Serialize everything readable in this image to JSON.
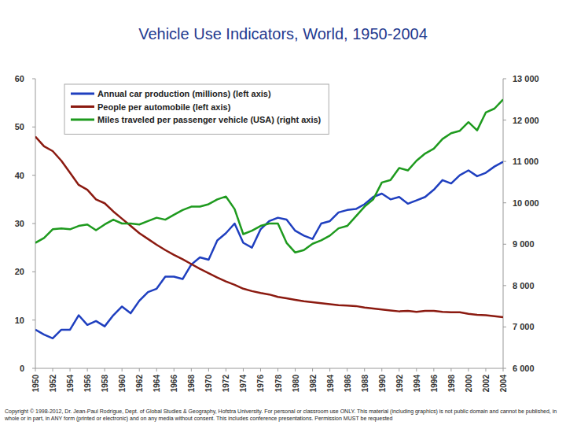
{
  "chart_data": {
    "type": "line",
    "title": "Vehicle Use Indicators, World, 1950-2004",
    "x": [
      1950,
      1951,
      1952,
      1953,
      1954,
      1955,
      1956,
      1957,
      1958,
      1959,
      1960,
      1961,
      1962,
      1963,
      1964,
      1965,
      1966,
      1967,
      1968,
      1969,
      1970,
      1971,
      1972,
      1973,
      1974,
      1975,
      1976,
      1977,
      1978,
      1979,
      1980,
      1981,
      1982,
      1983,
      1984,
      1985,
      1986,
      1987,
      1988,
      1989,
      1990,
      1991,
      1992,
      1993,
      1994,
      1995,
      1996,
      1997,
      1998,
      1999,
      2000,
      2001,
      2002,
      2003,
      2004
    ],
    "xlim": [
      1950,
      2004
    ],
    "xticks": [
      1950,
      1952,
      1954,
      1956,
      1958,
      1960,
      1962,
      1964,
      1966,
      1968,
      1970,
      1972,
      1974,
      1976,
      1978,
      1980,
      1982,
      1984,
      1986,
      1988,
      1990,
      1992,
      1994,
      1996,
      1998,
      2000,
      2002,
      2004
    ],
    "ylim": [
      0,
      60
    ],
    "yticks": [
      0,
      10,
      20,
      30,
      40,
      50,
      60
    ],
    "y2lim": [
      6000,
      13000
    ],
    "y2ticks": [
      {
        "value": 6000,
        "label": "6 000"
      },
      {
        "value": 7000,
        "label": "7 000"
      },
      {
        "value": 8000,
        "label": "8 000"
      },
      {
        "value": 9000,
        "label": "9 000"
      },
      {
        "value": 10000,
        "label": "10 000"
      },
      {
        "value": 11000,
        "label": "11 000"
      },
      {
        "value": 12000,
        "label": "12 000"
      },
      {
        "value": 13000,
        "label": "13 000"
      }
    ],
    "grid": false,
    "legend": "top-left",
    "series": [
      {
        "name": "Annual car production (millions) (left axis)",
        "color": "#1f3fbf",
        "axis": "y",
        "values": [
          8,
          7,
          6.2,
          8,
          8,
          11,
          9,
          9.8,
          8.7,
          11,
          12.8,
          11.4,
          14,
          15.8,
          16.5,
          19,
          19,
          18.5,
          21.5,
          23,
          22.5,
          26.5,
          28,
          30,
          26,
          25,
          28.8,
          30.5,
          31.2,
          30.8,
          28.5,
          27.5,
          26.8,
          30,
          30.5,
          32.3,
          32.8,
          33,
          34,
          35.5,
          36.2,
          35,
          35.5,
          34.1,
          34.8,
          35.5,
          37,
          39,
          38.3,
          40,
          41,
          39.8,
          40.5,
          41.8,
          42.8
        ]
      },
      {
        "name": "People per automobile (left axis)",
        "color": "#8b1a10",
        "axis": "y",
        "values": [
          48,
          46,
          45,
          43,
          40.5,
          38,
          37,
          35,
          34.2,
          32.5,
          31,
          29.5,
          28,
          26.8,
          25.6,
          24.5,
          23.5,
          22.6,
          21.6,
          20.6,
          19.7,
          18.8,
          18,
          17.3,
          16.5,
          16,
          15.6,
          15.3,
          14.8,
          14.5,
          14.2,
          13.9,
          13.7,
          13.5,
          13.3,
          13.1,
          13,
          12.9,
          12.6,
          12.4,
          12.2,
          12,
          11.8,
          11.9,
          11.7,
          11.9,
          11.9,
          11.7,
          11.6,
          11.6,
          11.3,
          11.1,
          11,
          10.8,
          10.6
        ]
      },
      {
        "name": "Miles traveled per passenger vehicle (USA) (right axis)",
        "color": "#1e9a1e",
        "axis": "y2",
        "values": [
          9033,
          9150,
          9360,
          9383,
          9360,
          9442,
          9477,
          9337,
          9477,
          9593,
          9500,
          9500,
          9477,
          9558,
          9640,
          9593,
          9710,
          9827,
          9908,
          9908,
          9967,
          10083,
          10153,
          9850,
          9243,
          9325,
          9442,
          9500,
          9500,
          9033,
          8800,
          8858,
          9010,
          9092,
          9208,
          9383,
          9442,
          9675,
          9908,
          10083,
          10492,
          10550,
          10842,
          10783,
          11017,
          11192,
          11308,
          11542,
          11682,
          11740,
          11950,
          11752,
          12183,
          12277,
          12498
        ]
      }
    ],
    "annotations": [
      "Copyright © 1998-2012, Dr. Jean-Paul Rodrigue, Dept. of Global Studies & Geography, Hofstra University. For personal or classroom use ONLY. This material (including graphics) is not public domain and cannot be published, in whole or in part, in ANY form (printed or electronic) and on any media without consent. This includes conference presentations. Permission MUST be requested"
    ]
  }
}
